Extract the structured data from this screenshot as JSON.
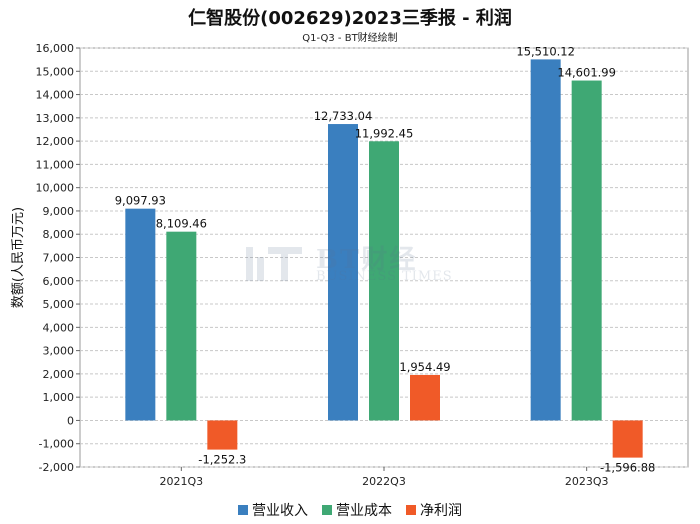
{
  "chart_data": {
    "type": "bar",
    "title": "仁智股份(002629)2023三季报 - 利润",
    "subtitle": "Q1-Q3 - BT财经绘制",
    "ylabel": "数额(人民币万元)",
    "xlabel": "",
    "categories": [
      "2021Q3",
      "2022Q3",
      "2023Q3"
    ],
    "ylim": [
      -2000,
      16000
    ],
    "yticks": [
      -2000,
      -1000,
      0,
      1000,
      2000,
      3000,
      4000,
      5000,
      6000,
      7000,
      8000,
      9000,
      10000,
      11000,
      12000,
      13000,
      14000,
      15000,
      16000
    ],
    "grid": true,
    "legend_position": "bottom-center",
    "series": [
      {
        "name": "营业收入",
        "color": "#3a7fbf",
        "values": [
          9097.93,
          12733.04,
          15510.12
        ],
        "labels": [
          "9,097.93",
          "12,733.04",
          "15,510.12"
        ]
      },
      {
        "name": "营业成本",
        "color": "#3fa874",
        "values": [
          8109.46,
          11992.45,
          14601.99
        ],
        "labels": [
          "8,109.46",
          "11,992.45",
          "14,601.99"
        ]
      },
      {
        "name": "净利润",
        "color": "#f05a28",
        "values": [
          -1252.3,
          1954.49,
          -1596.88
        ],
        "labels": [
          "-1,252.3",
          "1,954.49",
          "-1,596.88"
        ]
      }
    ]
  },
  "watermark": {
    "main": "BT财经",
    "sub": "BUSINESS TIMES"
  }
}
